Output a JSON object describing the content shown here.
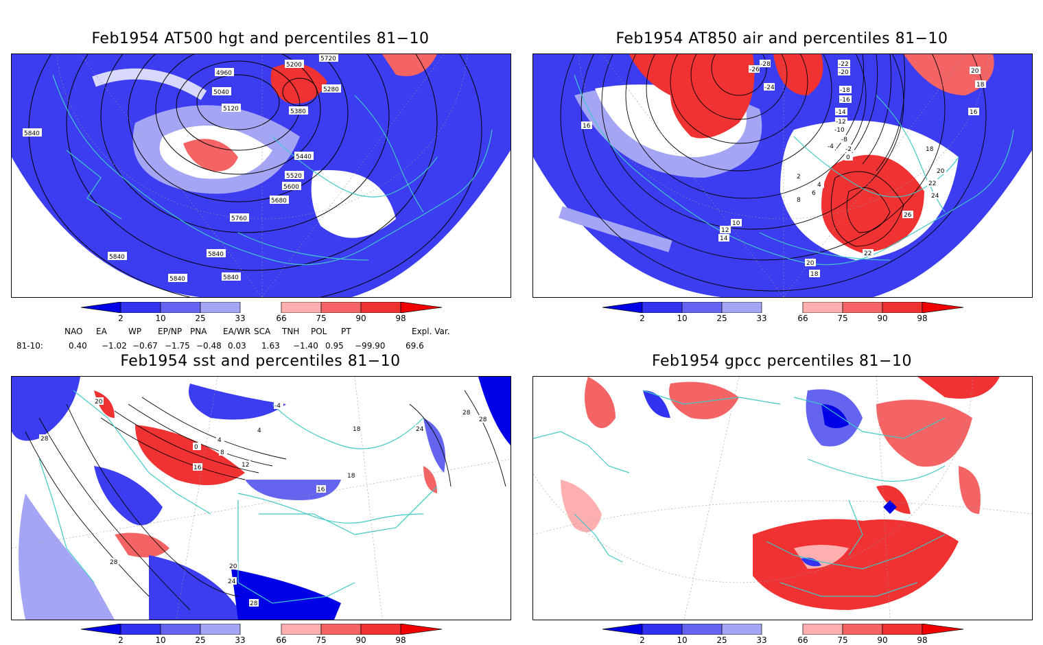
{
  "panels": {
    "p1": {
      "title": "Feb1954 AT500 hgt and percentiles 81−10",
      "contour_labels": [
        "4960",
        "5040",
        "5120",
        "5200",
        "5280",
        "5380",
        "5440",
        "5520",
        "5600",
        "5680",
        "5760",
        "5840",
        "5840",
        "5840",
        "5840",
        "5840",
        "5720"
      ]
    },
    "p2": {
      "title": "Feb1954 AT850 air and percentiles 81−10",
      "contour_labels": [
        "-28",
        "-26",
        "-24",
        "-22",
        "-20",
        "-18",
        "-16",
        "-14",
        "-12",
        "-10",
        "-8",
        "-4",
        "-2",
        "0",
        "2",
        "4",
        "6",
        "8",
        "10",
        "12",
        "14",
        "16",
        "18",
        "20",
        "22",
        "24",
        "26",
        "22",
        "20",
        "18",
        "16",
        "18",
        "20"
      ]
    },
    "p3": {
      "title": "Feb1954 sst and percentiles 81−10",
      "contour_labels": [
        "20",
        "28",
        "0",
        "4",
        "8",
        "12",
        "16",
        "20",
        "24",
        "28",
        "28",
        "28",
        "18",
        "16",
        "18",
        "24",
        "28",
        "-4",
        "4"
      ]
    },
    "p4": {
      "title": "Feb1954 gpcc percentiles 81−10"
    }
  },
  "colorbar": {
    "labels": [
      "2",
      "10",
      "25",
      "33",
      "66",
      "75",
      "90",
      "98"
    ],
    "colors": {
      "b1": "#0000e6",
      "b2": "#3232f0",
      "b3": "#6464f0",
      "b4": "#a5a5f5",
      "r1": "#ffafaf",
      "r2": "#f56464",
      "r3": "#f03232",
      "r4": "#f00000"
    }
  },
  "indices": {
    "headers": [
      "NAO",
      "EA",
      "WP",
      "EP/NP",
      "PNA",
      "EA/WR",
      "SCA",
      "TNH",
      "POL",
      "PT",
      "Expl. Var."
    ],
    "row_label": "81-10:",
    "values": [
      "0.40",
      "−1.02",
      "−0.67",
      "−1.75",
      "−0.48",
      "0.03",
      "1.63",
      "−1.40",
      "0.95",
      "−99.90",
      "69.6"
    ]
  },
  "colors": {
    "coast": "#40c8c8",
    "contour": "#000000",
    "grid": "#999999"
  }
}
